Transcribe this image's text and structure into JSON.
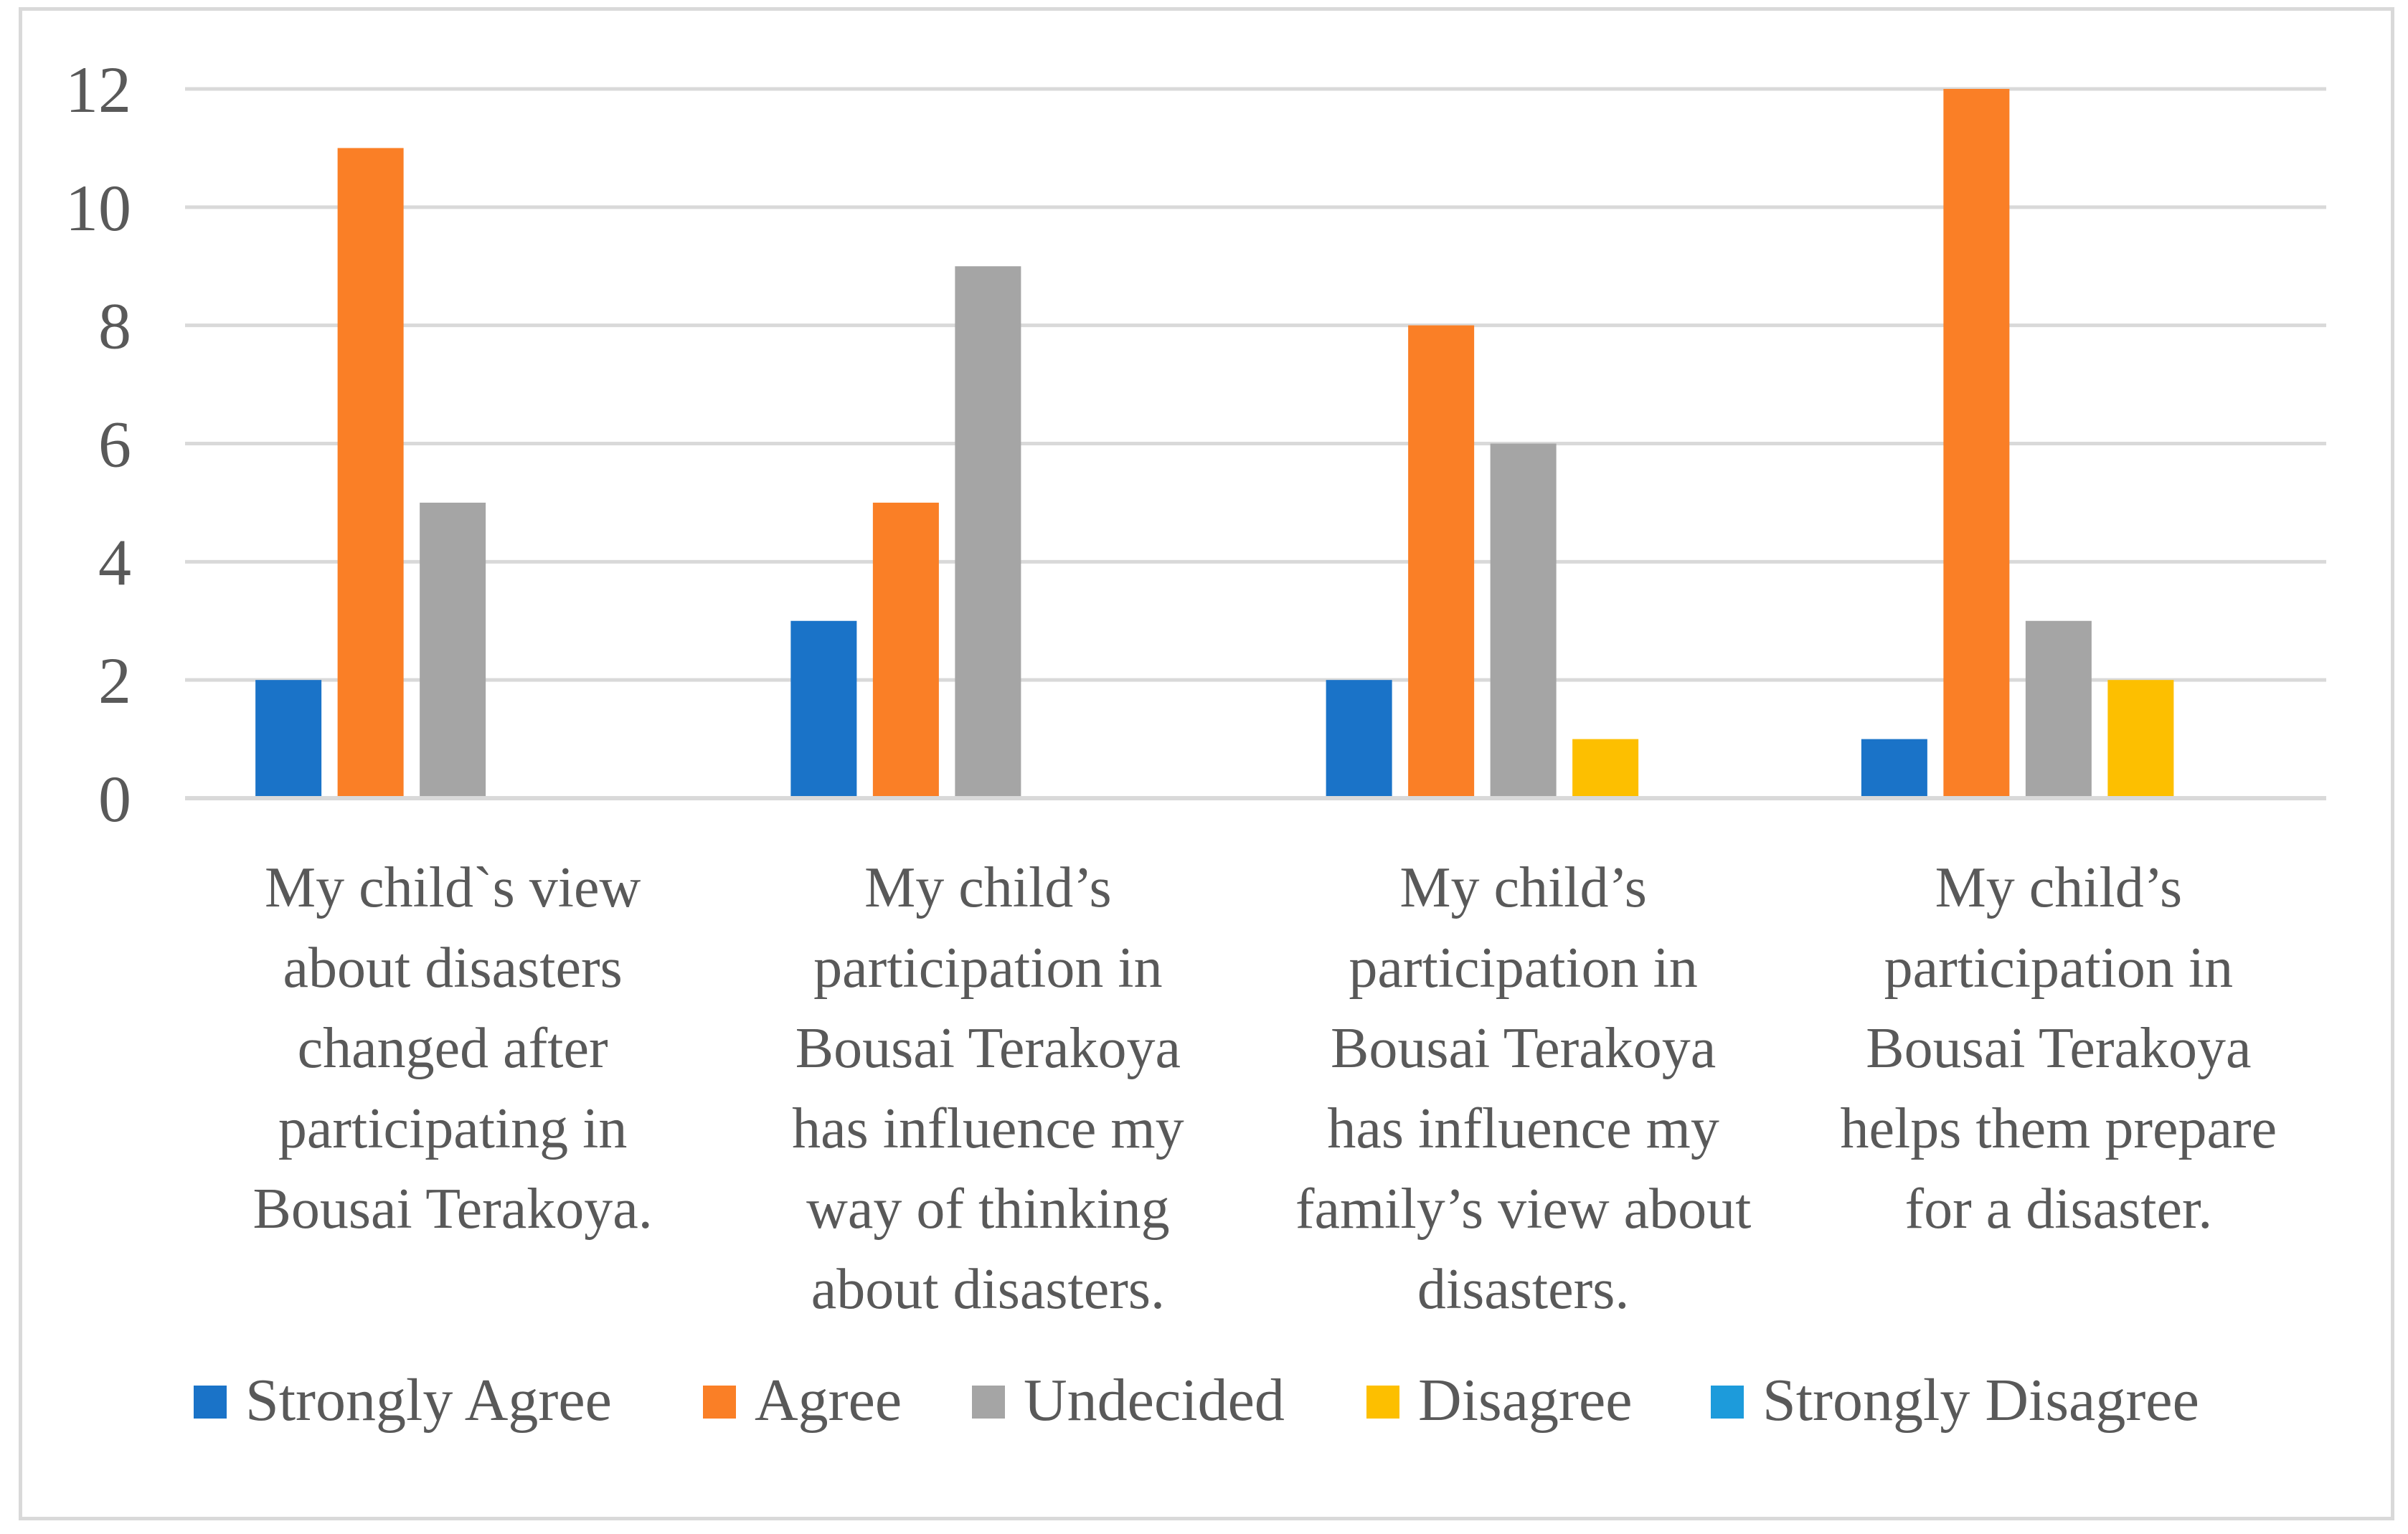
{
  "chart_data": {
    "type": "bar",
    "title": "",
    "xlabel": "",
    "ylabel": "",
    "ylim": [
      0,
      12
    ],
    "yticks": [
      0,
      2,
      4,
      6,
      8,
      10,
      12
    ],
    "grid": true,
    "legend_position": "bottom",
    "categories": [
      [
        "My child`s view",
        "about disasters",
        "changed after",
        "participating in",
        "Bousai Terakoya."
      ],
      [
        "My child’s",
        "participation in",
        "Bousai Terakoya",
        "has influence my",
        "way of thinking",
        "about disasters."
      ],
      [
        "My child’s",
        "participation in",
        "Bousai Terakoya",
        "has influence my",
        "family’s view about",
        "disasters."
      ],
      [
        "My child’s",
        "participation in",
        "Bousai Terakoya",
        "helps them prepare",
        "for a disaster."
      ]
    ],
    "series": [
      {
        "name": "Strongly Agree",
        "color": "#1a73c8",
        "values": [
          2,
          3,
          2,
          1
        ]
      },
      {
        "name": "Agree",
        "color": "#fa7f26",
        "values": [
          11,
          5,
          8,
          12
        ]
      },
      {
        "name": "Undecided",
        "color": "#a5a5a5",
        "values": [
          5,
          9,
          6,
          3
        ]
      },
      {
        "name": "Disagree",
        "color": "#fdbf00",
        "values": [
          0,
          0,
          1,
          2
        ]
      },
      {
        "name": "Strongly Disagree",
        "color": "#1d9bdb",
        "values": [
          0,
          0,
          0,
          0
        ]
      }
    ]
  }
}
